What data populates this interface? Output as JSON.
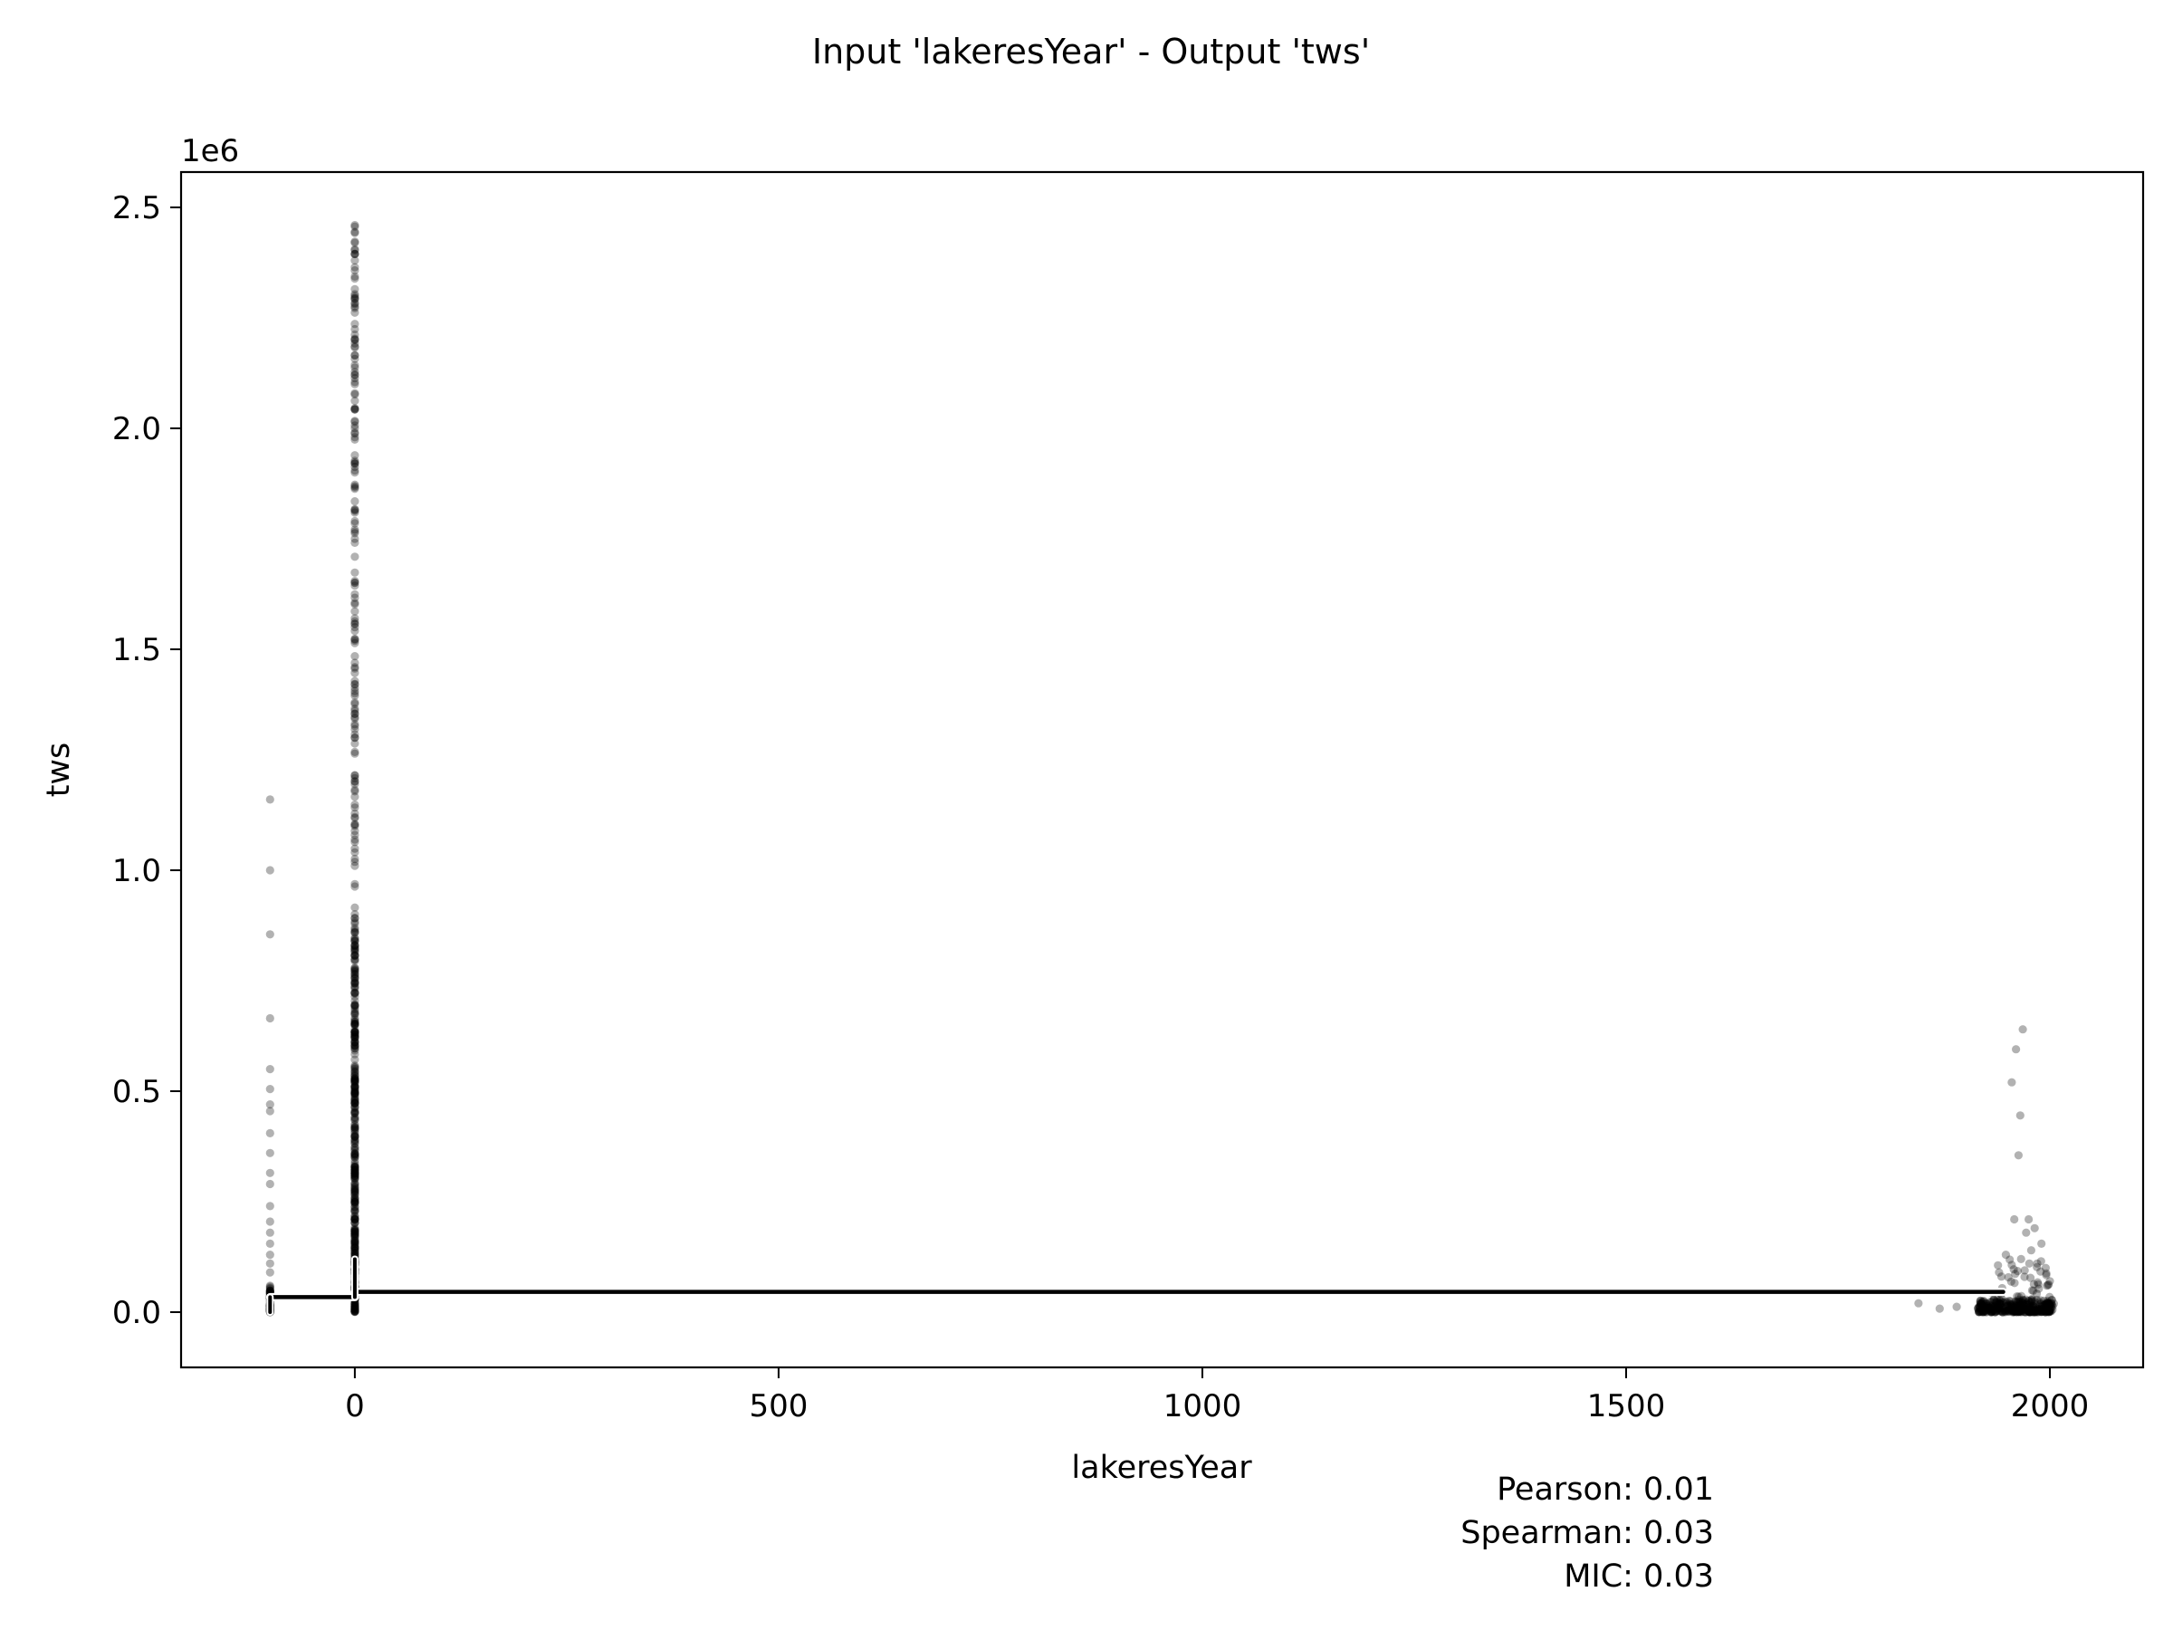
{
  "chart_data": {
    "type": "scatter",
    "title": "Input 'lakeresYear' - Output 'tws'",
    "xlabel": "lakeresYear",
    "ylabel": "tws",
    "y_offset_text": "1e6",
    "xlim": [
      -205,
      2110
    ],
    "ylim": [
      -0.125,
      2.58
    ],
    "y_scale_factor": 1000000,
    "xticks": [
      0,
      500,
      1000,
      1500,
      2000
    ],
    "xtick_labels": [
      "0",
      "500",
      "1000",
      "1500",
      "2000"
    ],
    "yticks": [
      0.0,
      0.5,
      1.0,
      1.5,
      2.0,
      2.5
    ],
    "ytick_labels": [
      "0.0",
      "0.5",
      "1.0",
      "1.5",
      "2.0",
      "2.5"
    ],
    "grid": false,
    "legend": "none",
    "point_color": "#000000",
    "point_opacity": 0.3,
    "trend_color": "#000000",
    "clusters": [
      {
        "x": -100,
        "y_min": 0.0,
        "y_max": 1.16,
        "dense_below": 0.06,
        "outliers": [
          1.16,
          1.0,
          0.855,
          0.665,
          0.55,
          0.505,
          0.47,
          0.455,
          0.405,
          0.36,
          0.315,
          0.29,
          0.24,
          0.205,
          0.18,
          0.155,
          0.13,
          0.11,
          0.09
        ]
      },
      {
        "x": 0,
        "y_min": 0.0,
        "y_max": 2.46,
        "dense_below": 0.85,
        "outliers": [
          2.46,
          2.42,
          2.38,
          2.3,
          2.2,
          2.1,
          1.98,
          1.9,
          1.75,
          1.65,
          1.55,
          1.4,
          1.3,
          1.2,
          1.1
        ]
      },
      {
        "x_min": 1915,
        "x_max": 2005,
        "y_min": 0.0,
        "y_max": 0.05,
        "dense_below": 0.03,
        "outliers_xy": [
          [
            1968,
            0.64
          ],
          [
            1960,
            0.595
          ],
          [
            1955,
            0.52
          ],
          [
            1965,
            0.445
          ],
          [
            1963,
            0.355
          ],
          [
            1975,
            0.21
          ],
          [
            1958,
            0.21
          ],
          [
            1982,
            0.19
          ],
          [
            1972,
            0.18
          ],
          [
            1990,
            0.155
          ],
          [
            1978,
            0.14
          ],
          [
            1948,
            0.13
          ],
          [
            1966,
            0.12
          ],
          [
            1985,
            0.11
          ],
          [
            1995,
            0.1
          ],
          [
            1940,
            0.09
          ],
          [
            1970,
            0.08
          ],
          [
            2000,
            0.07
          ],
          [
            1930,
            0.045
          ],
          [
            1845,
            0.02
          ],
          [
            1870,
            0.008
          ],
          [
            1890,
            0.012
          ]
        ]
      }
    ],
    "trend_line": {
      "segments": [
        {
          "x": [
            -100,
            0
          ],
          "y": [
            0.034,
            0.034
          ]
        },
        {
          "x": [
            0,
            1945
          ],
          "y": [
            0.046,
            0.046
          ]
        }
      ]
    },
    "stats": [
      "Pearson: 0.01",
      "Spearman: 0.03",
      "MIC: 0.03"
    ]
  }
}
